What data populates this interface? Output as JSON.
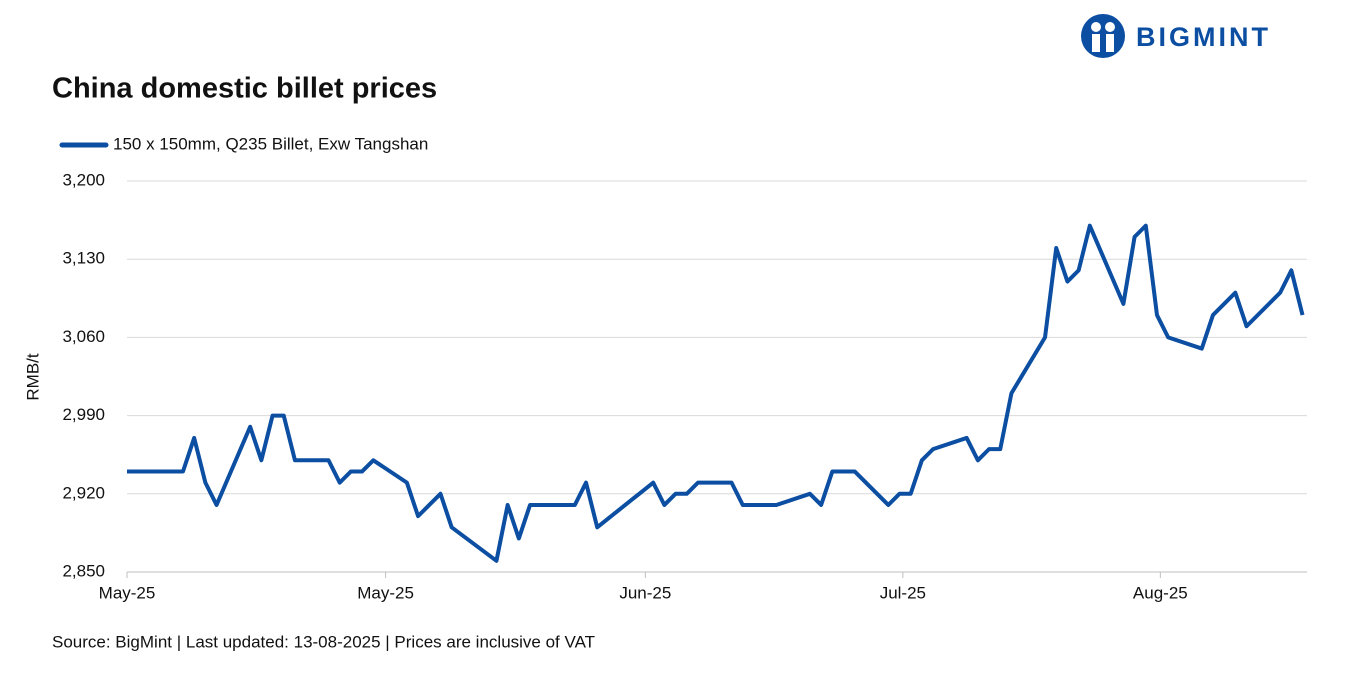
{
  "brand": "BIGMINT",
  "chart_data": {
    "type": "line",
    "title": "China domestic billet prices",
    "y_label": "RMB/t",
    "source": "Source: BigMint | Last updated: 13-08-2025 | Prices are inclusive of VAT",
    "x": [
      0,
      5,
      6,
      7,
      8,
      11,
      12,
      13,
      14,
      15,
      18,
      19,
      20,
      21,
      22,
      25,
      26,
      27,
      28,
      29,
      33,
      34,
      35,
      36,
      40,
      41,
      42,
      47,
      48,
      49,
      50,
      51,
      54,
      55,
      58,
      61,
      62,
      63,
      65,
      68,
      69,
      70,
      71,
      72,
      75,
      76,
      77,
      78,
      79,
      82,
      83,
      84,
      85,
      86,
      89,
      90,
      91,
      92,
      93,
      96,
      97,
      99,
      100,
      103,
      104,
      105
    ],
    "series": [
      {
        "name": "150 x 150mm, Q235 Billet, Exw Tangshan",
        "color": "#0b4ea2",
        "values": [
          2940,
          2940,
          2970,
          2930,
          2910,
          2980,
          2950,
          2990,
          2990,
          2950,
          2950,
          2930,
          2940,
          2940,
          2950,
          2930,
          2900,
          2910,
          2920,
          2890,
          2860,
          2910,
          2880,
          2910,
          2910,
          2930,
          2890,
          2930,
          2910,
          2920,
          2920,
          2930,
          2930,
          2910,
          2910,
          2920,
          2910,
          2940,
          2940,
          2910,
          2920,
          2920,
          2950,
          2960,
          2970,
          2950,
          2960,
          2960,
          3010,
          3060,
          3140,
          3110,
          3120,
          3160,
          3090,
          3150,
          3160,
          3080,
          3060,
          3050,
          3080,
          3100,
          3070,
          3100,
          3120,
          3080
        ]
      }
    ],
    "xlim": [
      0,
      105.4
    ],
    "xticks": [
      {
        "value": 0,
        "label": "May-25"
      },
      {
        "value": 23.1,
        "label": "May-25"
      },
      {
        "value": 46.3,
        "label": "Jun-25"
      },
      {
        "value": 69.3,
        "label": "Jul-25"
      },
      {
        "value": 92.3,
        "label": "Aug-25"
      }
    ],
    "ylim": [
      2850,
      3200
    ],
    "yticks": [
      {
        "value": 2850,
        "label": "2,850"
      },
      {
        "value": 2920,
        "label": "2,920"
      },
      {
        "value": 2990,
        "label": "2,990"
      },
      {
        "value": 3060,
        "label": "3,060"
      },
      {
        "value": 3130,
        "label": "3,130"
      },
      {
        "value": 3200,
        "label": "3,200"
      }
    ],
    "grid": true
  }
}
